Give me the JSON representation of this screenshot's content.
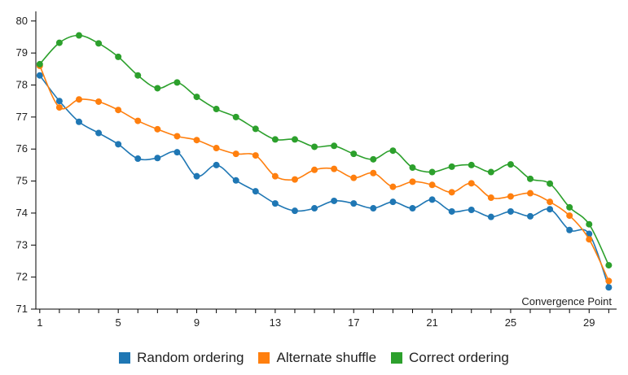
{
  "chart_data": {
    "type": "line",
    "x": [
      1,
      2,
      3,
      4,
      5,
      6,
      7,
      8,
      9,
      10,
      11,
      12,
      13,
      14,
      15,
      16,
      17,
      18,
      19,
      20,
      21,
      22,
      23,
      24,
      25,
      26,
      27,
      28,
      29,
      30
    ],
    "x_ticks": [
      1,
      5,
      9,
      13,
      17,
      21,
      25,
      29
    ],
    "y_ticks": [
      71,
      72,
      73,
      74,
      75,
      76,
      77,
      78,
      79,
      80
    ],
    "xlim": [
      0.8,
      30.4
    ],
    "ylim": [
      71,
      80.3
    ],
    "grid": false,
    "legend_position": "bottom",
    "annotation": "Convergence Point",
    "series": [
      {
        "name": "Random ordering",
        "color": "#1f77b4",
        "values": [
          78.3,
          77.5,
          76.85,
          76.5,
          76.15,
          75.7,
          75.72,
          75.9,
          75.15,
          75.5,
          75.02,
          74.68,
          74.3,
          74.07,
          74.15,
          74.38,
          74.3,
          74.15,
          74.35,
          74.15,
          74.42,
          74.05,
          74.1,
          73.88,
          74.05,
          73.9,
          74.12,
          73.47,
          73.35,
          71.68
        ]
      },
      {
        "name": "Alternate shuffle",
        "color": "#ff7f0e",
        "values": [
          78.6,
          77.3,
          77.55,
          77.48,
          77.22,
          76.88,
          76.62,
          76.4,
          76.28,
          76.03,
          75.85,
          75.8,
          75.15,
          75.05,
          75.35,
          75.38,
          75.1,
          75.25,
          74.82,
          74.98,
          74.88,
          74.65,
          74.93,
          74.48,
          74.52,
          74.62,
          74.35,
          73.92,
          73.18,
          71.88
        ]
      },
      {
        "name": "Correct ordering",
        "color": "#2ca02c",
        "values": [
          78.65,
          79.32,
          79.55,
          79.3,
          78.88,
          78.3,
          77.9,
          78.08,
          77.63,
          77.25,
          77.0,
          76.63,
          76.3,
          76.3,
          76.07,
          76.1,
          75.85,
          75.68,
          75.95,
          75.42,
          75.28,
          75.45,
          75.5,
          75.28,
          75.52,
          75.07,
          74.92,
          74.18,
          73.65,
          72.37
        ]
      }
    ]
  }
}
